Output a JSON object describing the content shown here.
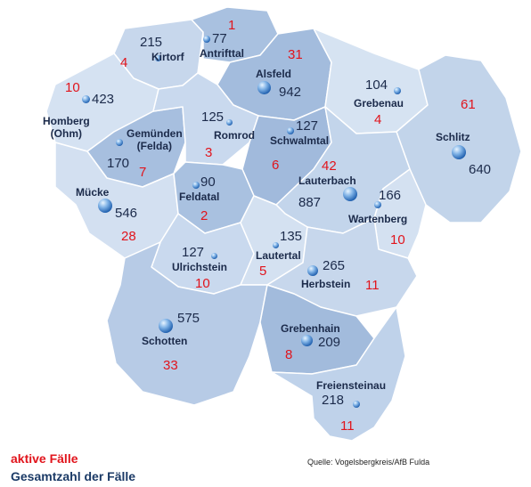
{
  "legend": {
    "active_label": "aktive Fälle",
    "total_label": "Gesamtzahl der Fälle"
  },
  "source": "Quelle: Vogelsbergkreis/AfB Fulda",
  "colors": {
    "active": "#e1141c",
    "total": "#1b2a4a",
    "region_light": "#cfdcef",
    "region_mid": "#b9cde6",
    "region_dark": "#a3bcdd"
  },
  "municipalities": [
    {
      "id": "antrifttal",
      "name": "Antrifttal",
      "total": "77",
      "active": "1"
    },
    {
      "id": "kirtorf",
      "name": "Kirtorf",
      "total": "215",
      "active": "4"
    },
    {
      "id": "alsfeld",
      "name": "Alsfeld",
      "total": "942",
      "active": "31"
    },
    {
      "id": "grebenau",
      "name": "Grebenau",
      "total": "104",
      "active": "4"
    },
    {
      "id": "homberg",
      "name": "Homberg\n(Ohm)",
      "total": "423",
      "active": "10"
    },
    {
      "id": "gemuenden",
      "name": "Gemünden\n(Felda)",
      "total": "170",
      "active": "7"
    },
    {
      "id": "romrod",
      "name": "Romrod",
      "total": "125",
      "active": "3"
    },
    {
      "id": "schwalmtal",
      "name": "Schwalmtal",
      "total": "127",
      "active": "6"
    },
    {
      "id": "schlitz",
      "name": "Schlitz",
      "total": "640",
      "active": "61"
    },
    {
      "id": "muecke",
      "name": "Mücke",
      "total": "546",
      "active": "28"
    },
    {
      "id": "feldatal",
      "name": "Feldatal",
      "total": "90",
      "active": "2"
    },
    {
      "id": "lauterbach",
      "name": "Lauterbach",
      "total": "887",
      "active": "42"
    },
    {
      "id": "wartenberg",
      "name": "Wartenberg",
      "total": "166",
      "active": "10"
    },
    {
      "id": "ulrichstein",
      "name": "Ulrichstein",
      "total": "127",
      "active": "10"
    },
    {
      "id": "lautertal",
      "name": "Lautertal",
      "total": "135",
      "active": "5"
    },
    {
      "id": "herbstein",
      "name": "Herbstein",
      "total": "265",
      "active": "11"
    },
    {
      "id": "schotten",
      "name": "Schotten",
      "total": "575",
      "active": "33"
    },
    {
      "id": "grebenhain",
      "name": "Grebenhain",
      "total": "209",
      "active": "8"
    },
    {
      "id": "freiensteinau",
      "name": "Freiensteinau",
      "total": "218",
      "active": "11"
    }
  ]
}
